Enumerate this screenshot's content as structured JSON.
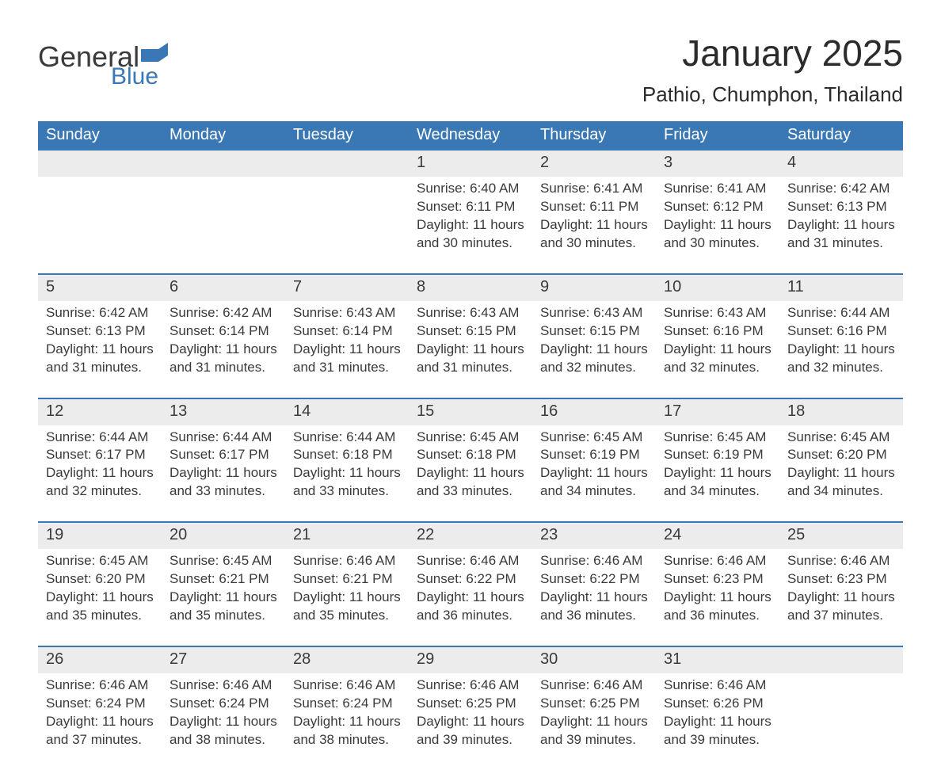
{
  "logo": {
    "text1": "General",
    "text2": "Blue",
    "flag_color": "#3a78b5"
  },
  "title": "January 2025",
  "location": "Pathio, Chumphon, Thailand",
  "header_bg": "#3a78b5",
  "header_fg": "#ffffff",
  "daynum_bg": "#ececec",
  "border_color": "#3a78b5",
  "text_color": "#3a3a3a",
  "days_of_week": [
    "Sunday",
    "Monday",
    "Tuesday",
    "Wednesday",
    "Thursday",
    "Friday",
    "Saturday"
  ],
  "weeks": [
    {
      "nums": [
        "",
        "",
        "",
        "1",
        "2",
        "3",
        "4"
      ],
      "cells": [
        null,
        null,
        null,
        {
          "sunrise": "Sunrise: 6:40 AM",
          "sunset": "Sunset: 6:11 PM",
          "dl1": "Daylight: 11 hours",
          "dl2": "and 30 minutes."
        },
        {
          "sunrise": "Sunrise: 6:41 AM",
          "sunset": "Sunset: 6:11 PM",
          "dl1": "Daylight: 11 hours",
          "dl2": "and 30 minutes."
        },
        {
          "sunrise": "Sunrise: 6:41 AM",
          "sunset": "Sunset: 6:12 PM",
          "dl1": "Daylight: 11 hours",
          "dl2": "and 30 minutes."
        },
        {
          "sunrise": "Sunrise: 6:42 AM",
          "sunset": "Sunset: 6:13 PM",
          "dl1": "Daylight: 11 hours",
          "dl2": "and 31 minutes."
        }
      ]
    },
    {
      "nums": [
        "5",
        "6",
        "7",
        "8",
        "9",
        "10",
        "11"
      ],
      "cells": [
        {
          "sunrise": "Sunrise: 6:42 AM",
          "sunset": "Sunset: 6:13 PM",
          "dl1": "Daylight: 11 hours",
          "dl2": "and 31 minutes."
        },
        {
          "sunrise": "Sunrise: 6:42 AM",
          "sunset": "Sunset: 6:14 PM",
          "dl1": "Daylight: 11 hours",
          "dl2": "and 31 minutes."
        },
        {
          "sunrise": "Sunrise: 6:43 AM",
          "sunset": "Sunset: 6:14 PM",
          "dl1": "Daylight: 11 hours",
          "dl2": "and 31 minutes."
        },
        {
          "sunrise": "Sunrise: 6:43 AM",
          "sunset": "Sunset: 6:15 PM",
          "dl1": "Daylight: 11 hours",
          "dl2": "and 31 minutes."
        },
        {
          "sunrise": "Sunrise: 6:43 AM",
          "sunset": "Sunset: 6:15 PM",
          "dl1": "Daylight: 11 hours",
          "dl2": "and 32 minutes."
        },
        {
          "sunrise": "Sunrise: 6:43 AM",
          "sunset": "Sunset: 6:16 PM",
          "dl1": "Daylight: 11 hours",
          "dl2": "and 32 minutes."
        },
        {
          "sunrise": "Sunrise: 6:44 AM",
          "sunset": "Sunset: 6:16 PM",
          "dl1": "Daylight: 11 hours",
          "dl2": "and 32 minutes."
        }
      ]
    },
    {
      "nums": [
        "12",
        "13",
        "14",
        "15",
        "16",
        "17",
        "18"
      ],
      "cells": [
        {
          "sunrise": "Sunrise: 6:44 AM",
          "sunset": "Sunset: 6:17 PM",
          "dl1": "Daylight: 11 hours",
          "dl2": "and 32 minutes."
        },
        {
          "sunrise": "Sunrise: 6:44 AM",
          "sunset": "Sunset: 6:17 PM",
          "dl1": "Daylight: 11 hours",
          "dl2": "and 33 minutes."
        },
        {
          "sunrise": "Sunrise: 6:44 AM",
          "sunset": "Sunset: 6:18 PM",
          "dl1": "Daylight: 11 hours",
          "dl2": "and 33 minutes."
        },
        {
          "sunrise": "Sunrise: 6:45 AM",
          "sunset": "Sunset: 6:18 PM",
          "dl1": "Daylight: 11 hours",
          "dl2": "and 33 minutes."
        },
        {
          "sunrise": "Sunrise: 6:45 AM",
          "sunset": "Sunset: 6:19 PM",
          "dl1": "Daylight: 11 hours",
          "dl2": "and 34 minutes."
        },
        {
          "sunrise": "Sunrise: 6:45 AM",
          "sunset": "Sunset: 6:19 PM",
          "dl1": "Daylight: 11 hours",
          "dl2": "and 34 minutes."
        },
        {
          "sunrise": "Sunrise: 6:45 AM",
          "sunset": "Sunset: 6:20 PM",
          "dl1": "Daylight: 11 hours",
          "dl2": "and 34 minutes."
        }
      ]
    },
    {
      "nums": [
        "19",
        "20",
        "21",
        "22",
        "23",
        "24",
        "25"
      ],
      "cells": [
        {
          "sunrise": "Sunrise: 6:45 AM",
          "sunset": "Sunset: 6:20 PM",
          "dl1": "Daylight: 11 hours",
          "dl2": "and 35 minutes."
        },
        {
          "sunrise": "Sunrise: 6:45 AM",
          "sunset": "Sunset: 6:21 PM",
          "dl1": "Daylight: 11 hours",
          "dl2": "and 35 minutes."
        },
        {
          "sunrise": "Sunrise: 6:46 AM",
          "sunset": "Sunset: 6:21 PM",
          "dl1": "Daylight: 11 hours",
          "dl2": "and 35 minutes."
        },
        {
          "sunrise": "Sunrise: 6:46 AM",
          "sunset": "Sunset: 6:22 PM",
          "dl1": "Daylight: 11 hours",
          "dl2": "and 36 minutes."
        },
        {
          "sunrise": "Sunrise: 6:46 AM",
          "sunset": "Sunset: 6:22 PM",
          "dl1": "Daylight: 11 hours",
          "dl2": "and 36 minutes."
        },
        {
          "sunrise": "Sunrise: 6:46 AM",
          "sunset": "Sunset: 6:23 PM",
          "dl1": "Daylight: 11 hours",
          "dl2": "and 36 minutes."
        },
        {
          "sunrise": "Sunrise: 6:46 AM",
          "sunset": "Sunset: 6:23 PM",
          "dl1": "Daylight: 11 hours",
          "dl2": "and 37 minutes."
        }
      ]
    },
    {
      "nums": [
        "26",
        "27",
        "28",
        "29",
        "30",
        "31",
        ""
      ],
      "cells": [
        {
          "sunrise": "Sunrise: 6:46 AM",
          "sunset": "Sunset: 6:24 PM",
          "dl1": "Daylight: 11 hours",
          "dl2": "and 37 minutes."
        },
        {
          "sunrise": "Sunrise: 6:46 AM",
          "sunset": "Sunset: 6:24 PM",
          "dl1": "Daylight: 11 hours",
          "dl2": "and 38 minutes."
        },
        {
          "sunrise": "Sunrise: 6:46 AM",
          "sunset": "Sunset: 6:24 PM",
          "dl1": "Daylight: 11 hours",
          "dl2": "and 38 minutes."
        },
        {
          "sunrise": "Sunrise: 6:46 AM",
          "sunset": "Sunset: 6:25 PM",
          "dl1": "Daylight: 11 hours",
          "dl2": "and 39 minutes."
        },
        {
          "sunrise": "Sunrise: 6:46 AM",
          "sunset": "Sunset: 6:25 PM",
          "dl1": "Daylight: 11 hours",
          "dl2": "and 39 minutes."
        },
        {
          "sunrise": "Sunrise: 6:46 AM",
          "sunset": "Sunset: 6:26 PM",
          "dl1": "Daylight: 11 hours",
          "dl2": "and 39 minutes."
        },
        null
      ]
    }
  ]
}
